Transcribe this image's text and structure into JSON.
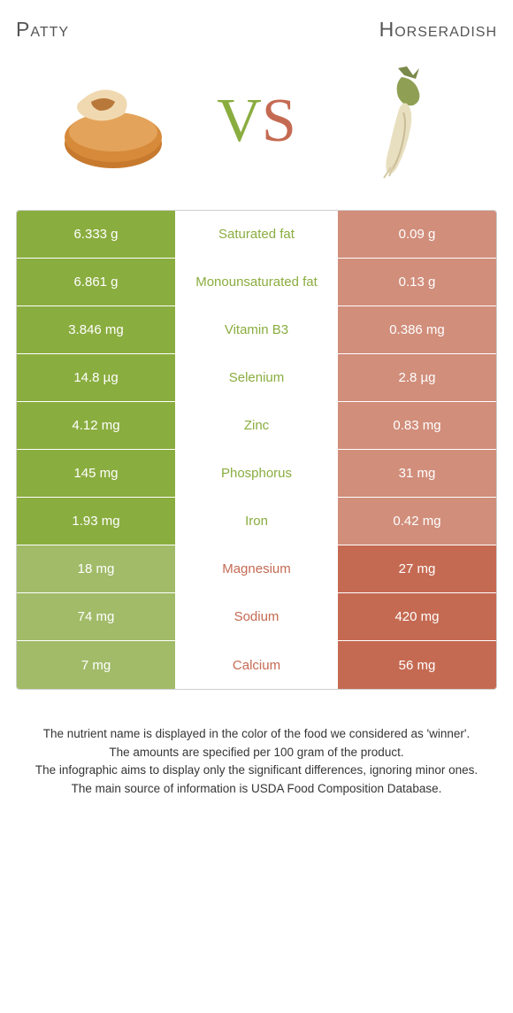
{
  "header": {
    "left_title": "Patty",
    "right_title": " Horseradish",
    "vs_v": "V",
    "vs_s": "S"
  },
  "colors": {
    "left_winner": "#8aad3f",
    "right_winner": "#c56a52",
    "left_dim": "#a1bb69",
    "right_dim": "#d18e7b"
  },
  "rows": [
    {
      "label": "Saturated fat",
      "left": "6.333 g",
      "right": "0.09 g",
      "winner": "left"
    },
    {
      "label": "Monounsaturated fat",
      "left": "6.861 g",
      "right": "0.13 g",
      "winner": "left"
    },
    {
      "label": "Vitamin B3",
      "left": "3.846 mg",
      "right": "0.386 mg",
      "winner": "left"
    },
    {
      "label": "Selenium",
      "left": "14.8 µg",
      "right": "2.8 µg",
      "winner": "left"
    },
    {
      "label": "Zinc",
      "left": "4.12 mg",
      "right": "0.83 mg",
      "winner": "left"
    },
    {
      "label": "Phosphorus",
      "left": "145 mg",
      "right": "31 mg",
      "winner": "left"
    },
    {
      "label": "Iron",
      "left": "1.93 mg",
      "right": "0.42 mg",
      "winner": "left"
    },
    {
      "label": "Magnesium",
      "left": "18 mg",
      "right": "27 mg",
      "winner": "right"
    },
    {
      "label": "Sodium",
      "left": "74 mg",
      "right": "420 mg",
      "winner": "right"
    },
    {
      "label": "Calcium",
      "left": "7 mg",
      "right": "56 mg",
      "winner": "right"
    }
  ],
  "footer": {
    "line1": "The nutrient name is displayed in the color of the food we considered as 'winner'.",
    "line2": "The amounts are specified per 100 gram of the product.",
    "line3": "The infographic aims to display only the significant differences, ignoring minor ones.",
    "line4": "The main source of information is USDA Food Composition Database."
  }
}
